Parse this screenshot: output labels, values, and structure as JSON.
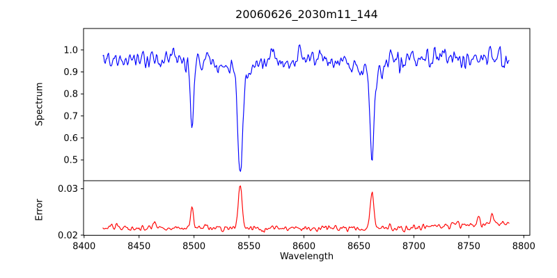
{
  "chart_data": {
    "type": "line",
    "title": "20060626_2030m11_144",
    "xlabel": "Wavelength",
    "grid": false,
    "legend": "none",
    "xlim": [
      8399.5,
      8805.5
    ],
    "xticks": [
      {
        "label": "8400",
        "value": 8400
      },
      {
        "label": "8450",
        "value": 8450
      },
      {
        "label": "8500",
        "value": 8500
      },
      {
        "label": "8550",
        "value": 8550
      },
      {
        "label": "8600",
        "value": 8600
      },
      {
        "label": "8650",
        "value": 8650
      },
      {
        "label": "8700",
        "value": 8700
      },
      {
        "label": "8750",
        "value": 8750
      },
      {
        "label": "8800",
        "value": 8800
      }
    ],
    "panels": [
      {
        "id": "spectrum",
        "ylabel": "Spectrum",
        "ylim": [
          0.4055,
          1.0975
        ],
        "yticks": [
          {
            "label": "1.0",
            "value": 1.0
          },
          {
            "label": "0.9",
            "value": 0.9
          },
          {
            "label": "0.8",
            "value": 0.8
          },
          {
            "label": "0.7",
            "value": 0.7
          },
          {
            "label": "0.6",
            "value": 0.6
          },
          {
            "label": "0.5",
            "value": 0.5
          }
        ],
        "series": [
          {
            "name": "spectrum",
            "color": "#0000ff",
            "x_start": 8417,
            "x_end": 8787,
            "x_step": 0.75,
            "continuum": 0.957,
            "noise_std": 0.021,
            "wiggle_amp": 0.005,
            "absorption_lines": [
              {
                "center": 8498.0,
                "core_depth": 0.285,
                "core_sigma": 1.3,
                "wing_depth": 0.045,
                "wing_sigma": 5.0,
                "min_value": 0.63
              },
              {
                "center": 8542.0,
                "core_depth": 0.43,
                "core_sigma": 1.9,
                "wing_depth": 0.09,
                "wing_sigma": 9.0,
                "min_value": 0.44
              },
              {
                "center": 8662.0,
                "core_depth": 0.4,
                "core_sigma": 1.7,
                "wing_depth": 0.085,
                "wing_sigma": 7.5,
                "min_value": 0.47
              }
            ]
          }
        ]
      },
      {
        "id": "error",
        "ylabel": "Error",
        "ylim": [
          0.01996,
          0.03174
        ],
        "yticks": [
          {
            "label": "0.03",
            "value": 0.03
          },
          {
            "label": "0.02",
            "value": 0.02
          }
        ],
        "series": [
          {
            "name": "error",
            "color": "#ff0000",
            "x_start": 8417,
            "x_end": 8787,
            "x_step": 0.75,
            "baseline": 0.0215,
            "noise_std": 0.00033,
            "peaks": [
              {
                "center": 8498.0,
                "height": 0.0047,
                "sigma": 1.4
              },
              {
                "center": 8542.0,
                "height": 0.0097,
                "sigma": 1.7
              },
              {
                "center": 8662.0,
                "height": 0.0077,
                "sigma": 1.6
              },
              {
                "center": 8430.0,
                "height": 0.0013,
                "sigma": 1.2
              },
              {
                "center": 8464.0,
                "height": 0.001,
                "sigma": 1.0
              },
              {
                "center": 8736.0,
                "height": 0.001,
                "sigma": 1.5
              },
              {
                "center": 8759.0,
                "height": 0.0013,
                "sigma": 1.3
              },
              {
                "center": 8771.0,
                "height": 0.0014,
                "sigma": 1.2
              }
            ],
            "right_rise": {
              "start": 8690,
              "amount": 0.001
            }
          }
        ]
      }
    ]
  }
}
